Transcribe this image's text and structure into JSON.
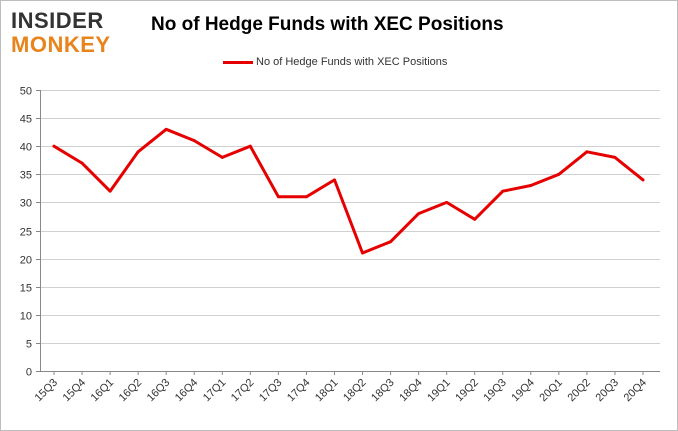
{
  "logo": {
    "top": "INSIDER",
    "bottom": "MONKEY"
  },
  "chart_data": {
    "type": "line",
    "title": "No of Hedge Funds with XEC Positions",
    "xlabel": "",
    "ylabel": "",
    "categories": [
      "15Q3",
      "15Q4",
      "16Q1",
      "16Q2",
      "16Q3",
      "16Q4",
      "17Q1",
      "17Q2",
      "17Q3",
      "17Q4",
      "18Q1",
      "18Q2",
      "18Q3",
      "18Q4",
      "19Q1",
      "19Q2",
      "19Q3",
      "19Q4",
      "20Q1",
      "20Q2",
      "20Q3",
      "20Q4"
    ],
    "series": [
      {
        "name": "No of Hedge Funds with XEC Positions",
        "values": [
          40,
          37,
          32,
          39,
          43,
          41,
          38,
          40,
          31,
          31,
          34,
          21,
          23,
          28,
          30,
          27,
          32,
          33,
          35,
          39,
          38,
          34
        ],
        "color": "#e60000"
      }
    ],
    "ylim": [
      0,
      50
    ],
    "yticks": [
      0,
      5,
      10,
      15,
      20,
      25,
      30,
      35,
      40,
      45,
      50
    ],
    "grid": true,
    "legend_position": "top-center"
  }
}
